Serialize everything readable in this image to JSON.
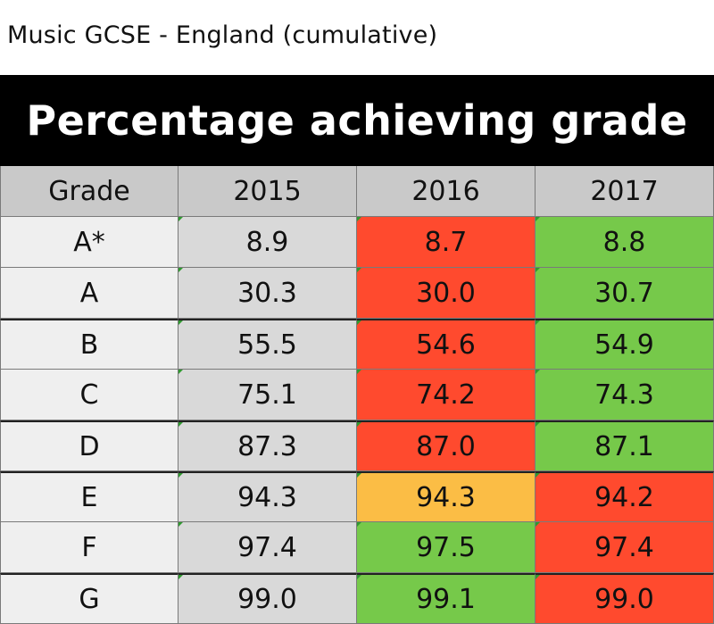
{
  "page": {
    "title": "Music GCSE - England (cumulative)"
  },
  "table": {
    "banner": "Percentage achieving grade",
    "headers": [
      "Grade",
      "2015",
      "2016",
      "2017"
    ],
    "rows": [
      {
        "grade": "A*",
        "v2015": "8.9",
        "v2016": "8.7",
        "v2017": "8.8",
        "c2016": "red",
        "c2017": "green"
      },
      {
        "grade": "A",
        "v2015": "30.3",
        "v2016": "30.0",
        "v2017": "30.7",
        "c2016": "red",
        "c2017": "green"
      },
      {
        "grade": "B",
        "v2015": "55.5",
        "v2016": "54.6",
        "v2017": "54.9",
        "c2016": "red",
        "c2017": "green"
      },
      {
        "grade": "C",
        "v2015": "75.1",
        "v2016": "74.2",
        "v2017": "74.3",
        "c2016": "red",
        "c2017": "green"
      },
      {
        "grade": "D",
        "v2015": "87.3",
        "v2016": "87.0",
        "v2017": "87.1",
        "c2016": "red",
        "c2017": "green"
      },
      {
        "grade": "E",
        "v2015": "94.3",
        "v2016": "94.3",
        "v2017": "94.2",
        "c2016": "amber",
        "c2017": "red"
      },
      {
        "grade": "F",
        "v2015": "97.4",
        "v2016": "97.5",
        "v2017": "97.4",
        "c2016": "green",
        "c2017": "red"
      },
      {
        "grade": "G",
        "v2015": "99.0",
        "v2016": "99.1",
        "v2017": "99.0",
        "c2016": "green",
        "c2017": "red"
      }
    ]
  },
  "colors": {
    "red": "#ff4a2e",
    "green": "#76c94a",
    "amber": "#fbbd45",
    "header_bg": "#c9c9c9",
    "banner_bg": "#000000"
  },
  "chart_data": {
    "type": "table",
    "title": "Percentage achieving grade",
    "columns": [
      "Grade",
      "2015",
      "2016",
      "2017"
    ],
    "rows": [
      [
        "A*",
        8.9,
        8.7,
        8.8
      ],
      [
        "A",
        30.3,
        30.0,
        30.7
      ],
      [
        "B",
        55.5,
        54.6,
        54.9
      ],
      [
        "C",
        75.1,
        74.2,
        74.3
      ],
      [
        "D",
        87.3,
        87.0,
        87.1
      ],
      [
        "E",
        94.3,
        94.3,
        94.2
      ],
      [
        "F",
        97.4,
        97.5,
        97.4
      ],
      [
        "G",
        99.0,
        99.1,
        99.0
      ]
    ]
  }
}
